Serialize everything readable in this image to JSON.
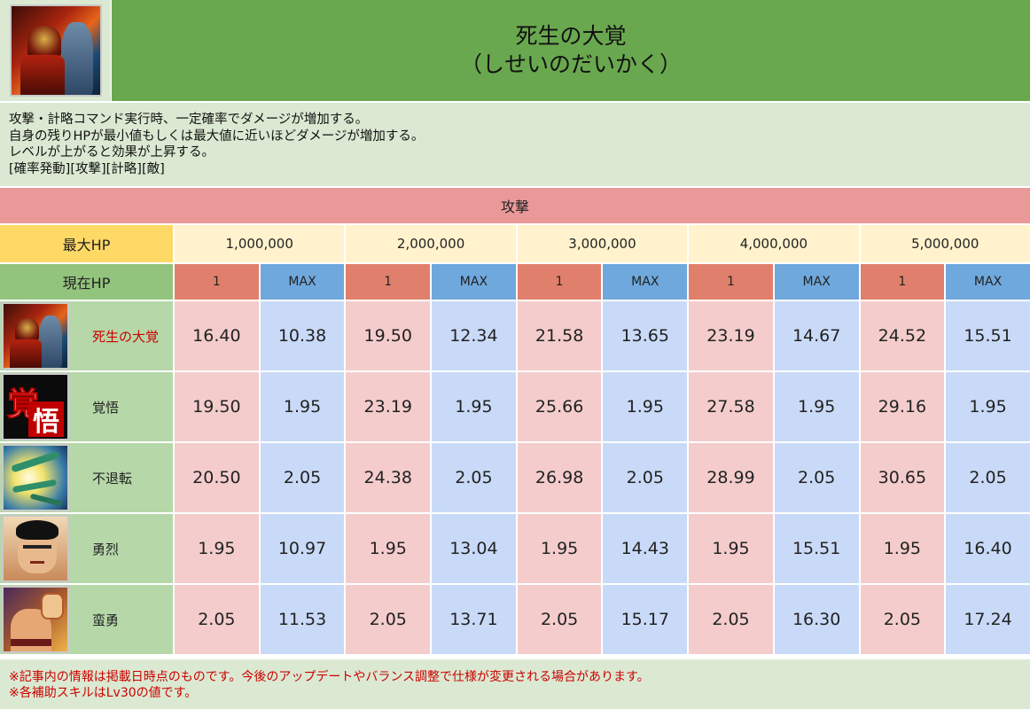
{
  "header": {
    "icon": "skill-icon-samurai",
    "title": "死生の大覚",
    "reading": "（しせいのだいかく）"
  },
  "description": {
    "lines": [
      "攻撃・計略コマンド実行時、一定確率でダメージが増加する。",
      "自身の残りHPが最小値もしくは最大値に近いほどダメージが増加する。",
      "レベルが上がると効果が上昇する。",
      "[確率発動][攻撃][計略][敵]"
    ]
  },
  "table": {
    "section_label": "攻撃",
    "max_hp_label": "最大HP",
    "max_hp_values": [
      "1,000,000",
      "2,000,000",
      "3,000,000",
      "4,000,000",
      "5,000,000"
    ],
    "current_hp_label": "現在HP",
    "current_hp_low": "1",
    "current_hp_max": "MAX",
    "rows": [
      {
        "icon": "samurai-portrait-icon",
        "name": "死生の大覚",
        "values": [
          "16.40",
          "10.38",
          "19.50",
          "12.34",
          "21.58",
          "13.65",
          "23.19",
          "14.67",
          "24.52",
          "15.51"
        ]
      },
      {
        "icon": "kakugo-kanji-icon",
        "name": "覚悟",
        "values": [
          "19.50",
          "1.95",
          "23.19",
          "1.95",
          "25.66",
          "1.95",
          "27.58",
          "1.95",
          "29.16",
          "1.95"
        ]
      },
      {
        "icon": "dragonfly-icon",
        "name": "不退転",
        "values": [
          "20.50",
          "2.05",
          "24.38",
          "2.05",
          "26.98",
          "2.05",
          "28.99",
          "2.05",
          "30.65",
          "2.05"
        ]
      },
      {
        "icon": "warrior-face-icon",
        "name": "勇烈",
        "values": [
          "1.95",
          "10.97",
          "1.95",
          "13.04",
          "1.95",
          "14.43",
          "1.95",
          "15.51",
          "1.95",
          "16.40"
        ]
      },
      {
        "icon": "sumo-wrestler-icon",
        "name": "蛮勇",
        "values": [
          "2.05",
          "11.53",
          "2.05",
          "13.71",
          "2.05",
          "15.17",
          "2.05",
          "16.30",
          "2.05",
          "17.24"
        ]
      }
    ],
    "kanji_art": [
      "覚",
      "悟"
    ]
  },
  "footer": {
    "notes": [
      "※記事内の情報は掲載日時点のものです。今後のアップデートやバランス調整で仕様が変更される場合があります。",
      "※各補助スキルはLv30の値です。"
    ]
  },
  "colors": {
    "header_green": "#6aa84f",
    "light_green": "#dbe9d2",
    "section_pink": "#ea9999",
    "maxhp_yellow": "#ffd966",
    "maxhp_cream": "#fff2cc",
    "curhp_green": "#93c47d",
    "low_red": "#e0806c",
    "max_blue": "#6fa8dc",
    "cell_pink": "#f4cccc",
    "cell_blue": "#c9daf8",
    "skill_green": "#b6d7a8",
    "note_red": "#cc0000"
  }
}
